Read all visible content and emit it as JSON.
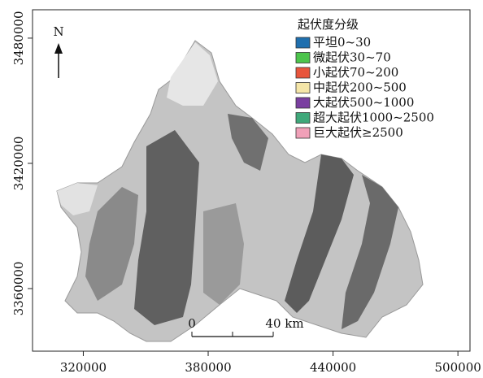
{
  "map": {
    "xlim": [
      295600,
      505800
    ],
    "ylim": [
      3330000,
      3493600
    ],
    "x_ticks": [
      320000,
      380000,
      440000,
      500000
    ],
    "y_ticks": [
      3480000,
      3420000,
      3360000
    ],
    "north": "N",
    "scale_bar": {
      "start": "0",
      "end": "40 km"
    },
    "legend": {
      "title": "起伏度分级",
      "items": [
        {
          "label": "平坦0~30",
          "color": "#1f6fae"
        },
        {
          "label": "微起伏30~70",
          "color": "#4cc44c"
        },
        {
          "label": "小起伏70~200",
          "color": "#e8553c"
        },
        {
          "label": "中起伏200~500",
          "color": "#f5e6a8"
        },
        {
          "label": "大起伏500~1000",
          "color": "#7a3fa0"
        },
        {
          "label": "超大起伏1000~2500",
          "color": "#3fa87a"
        },
        {
          "label": "巨大起伏≥2500",
          "color": "#f0a0b8"
        }
      ]
    }
  }
}
